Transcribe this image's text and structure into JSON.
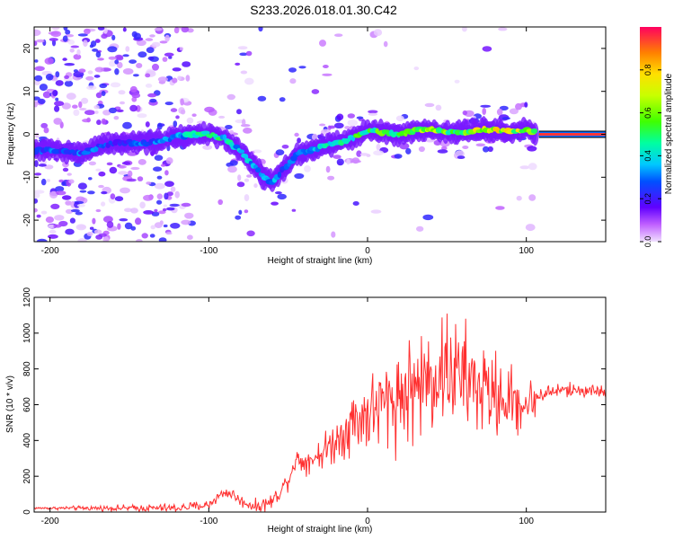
{
  "title": "S233.2026.018.01.30.C42",
  "chart_data": [
    {
      "type": "heatmap",
      "name": "spectrogram",
      "xlabel": "Height of straight line (km)",
      "ylabel": "Frequency (Hz)",
      "xlim": [
        -210,
        150
      ],
      "ylim": [
        -25,
        25
      ],
      "xticks": [
        -200,
        -100,
        0,
        100
      ],
      "yticks": [
        -20,
        -10,
        0,
        10,
        20
      ],
      "colorbar": {
        "label": "Normalized spectral amplitude",
        "range": [
          0,
          1
        ],
        "ticks": [
          0.0,
          0.2,
          0.4,
          0.6,
          0.8
        ]
      },
      "ridge": {
        "x": [
          -210,
          -200,
          -190,
          -180,
          -170,
          -160,
          -150,
          -140,
          -130,
          -120,
          -110,
          -100,
          -90,
          -80,
          -70,
          -65,
          -60,
          -55,
          -50,
          -45,
          -40,
          -35,
          -30,
          -25,
          -20,
          -10,
          0,
          10,
          20,
          30,
          40,
          50,
          60,
          70,
          80,
          90,
          100,
          105
        ],
        "freq": [
          -4,
          -3.5,
          -4,
          -4.5,
          -3,
          -2,
          -2,
          -2,
          -1.5,
          -0.5,
          0,
          0,
          -1,
          -4,
          -8,
          -10,
          -11,
          -9,
          -7,
          -5,
          -4,
          -3.5,
          -3,
          -2.5,
          -2,
          -1,
          1,
          0.5,
          0,
          1,
          1,
          0.5,
          0.5,
          1,
          1,
          0.5,
          1,
          0.5
        ],
        "amp": [
          0.25,
          0.3,
          0.25,
          0.3,
          0.3,
          0.25,
          0.25,
          0.3,
          0.3,
          0.35,
          0.45,
          0.5,
          0.45,
          0.4,
          0.35,
          0.45,
          0.35,
          0.3,
          0.3,
          0.3,
          0.35,
          0.35,
          0.4,
          0.45,
          0.45,
          0.5,
          0.55,
          0.55,
          0.6,
          0.6,
          0.65,
          0.6,
          0.6,
          0.7,
          0.75,
          0.7,
          0.65,
          0.6
        ]
      },
      "constant_segment": {
        "x": [
          108,
          150
        ],
        "freq": 0,
        "amp": 0.95
      }
    },
    {
      "type": "line",
      "name": "snr",
      "xlabel": "Height of straight line (km)",
      "ylabel": "SNR (10 * v/v)",
      "xlim": [
        -210,
        150
      ],
      "ylim": [
        0,
        1200
      ],
      "xticks": [
        -200,
        -100,
        0,
        100
      ],
      "yticks": [
        0,
        200,
        400,
        600,
        800,
        1000,
        1200
      ],
      "color": "#ff3030",
      "envelope_x": [
        -210,
        -180,
        -150,
        -120,
        -100,
        -95,
        -90,
        -85,
        -80,
        -70,
        -60,
        -50,
        -45,
        -40,
        -30,
        -20,
        -10,
        0,
        10,
        20,
        30,
        40,
        50,
        60,
        70,
        80,
        90,
        100,
        110,
        120,
        130,
        140,
        150
      ],
      "envelope_y": [
        22,
        22,
        22,
        22,
        40,
        80,
        110,
        100,
        60,
        30,
        60,
        180,
        300,
        280,
        320,
        400,
        500,
        550,
        600,
        650,
        700,
        750,
        800,
        750,
        700,
        650,
        620,
        600,
        660,
        680,
        680,
        680,
        670
      ],
      "noise_x": [
        -210,
        -100,
        -70,
        -45,
        -30,
        -10,
        10,
        30,
        50,
        70,
        100,
        110,
        150
      ],
      "noise_y": [
        5,
        25,
        30,
        50,
        70,
        150,
        220,
        260,
        280,
        240,
        130,
        40,
        30
      ]
    }
  ]
}
